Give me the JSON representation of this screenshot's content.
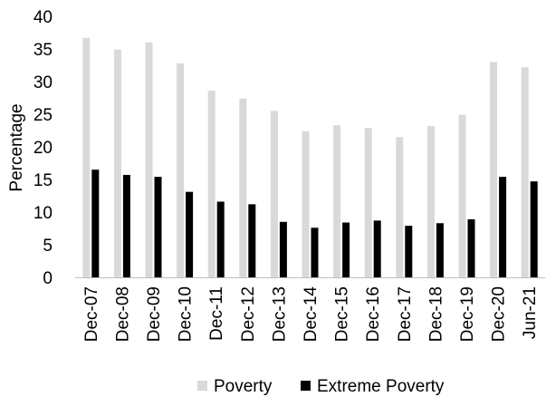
{
  "chart_data": {
    "type": "bar",
    "categories": [
      "Dec-07",
      "Dec-08",
      "Dec-09",
      "Dec-10",
      "Dec-11",
      "Dec-12",
      "Dec-13",
      "Dec-14",
      "Dec-15",
      "Dec-16",
      "Dec-17",
      "Dec-18",
      "Dec-19",
      "Dec-20",
      "Jun-21"
    ],
    "series": [
      {
        "name": "Poverty",
        "color": "#d9d9d9",
        "values": [
          36.7,
          34.9,
          36.0,
          32.8,
          28.6,
          27.4,
          25.5,
          22.4,
          23.3,
          22.9,
          21.5,
          23.2,
          24.9,
          33.0,
          32.2
        ]
      },
      {
        "name": "Extreme Poverty",
        "color": "#000000",
        "values": [
          16.5,
          15.7,
          15.4,
          13.1,
          11.6,
          11.2,
          8.5,
          7.6,
          8.4,
          8.7,
          7.9,
          8.3,
          8.9,
          15.4,
          14.7
        ]
      }
    ],
    "ylabel": "Percentage",
    "xlabel": "",
    "title": "",
    "ylim": [
      0,
      40
    ],
    "yticks": [
      0,
      5,
      10,
      15,
      20,
      25,
      30,
      35,
      40
    ],
    "grid": false,
    "legend": "bottom-center"
  }
}
